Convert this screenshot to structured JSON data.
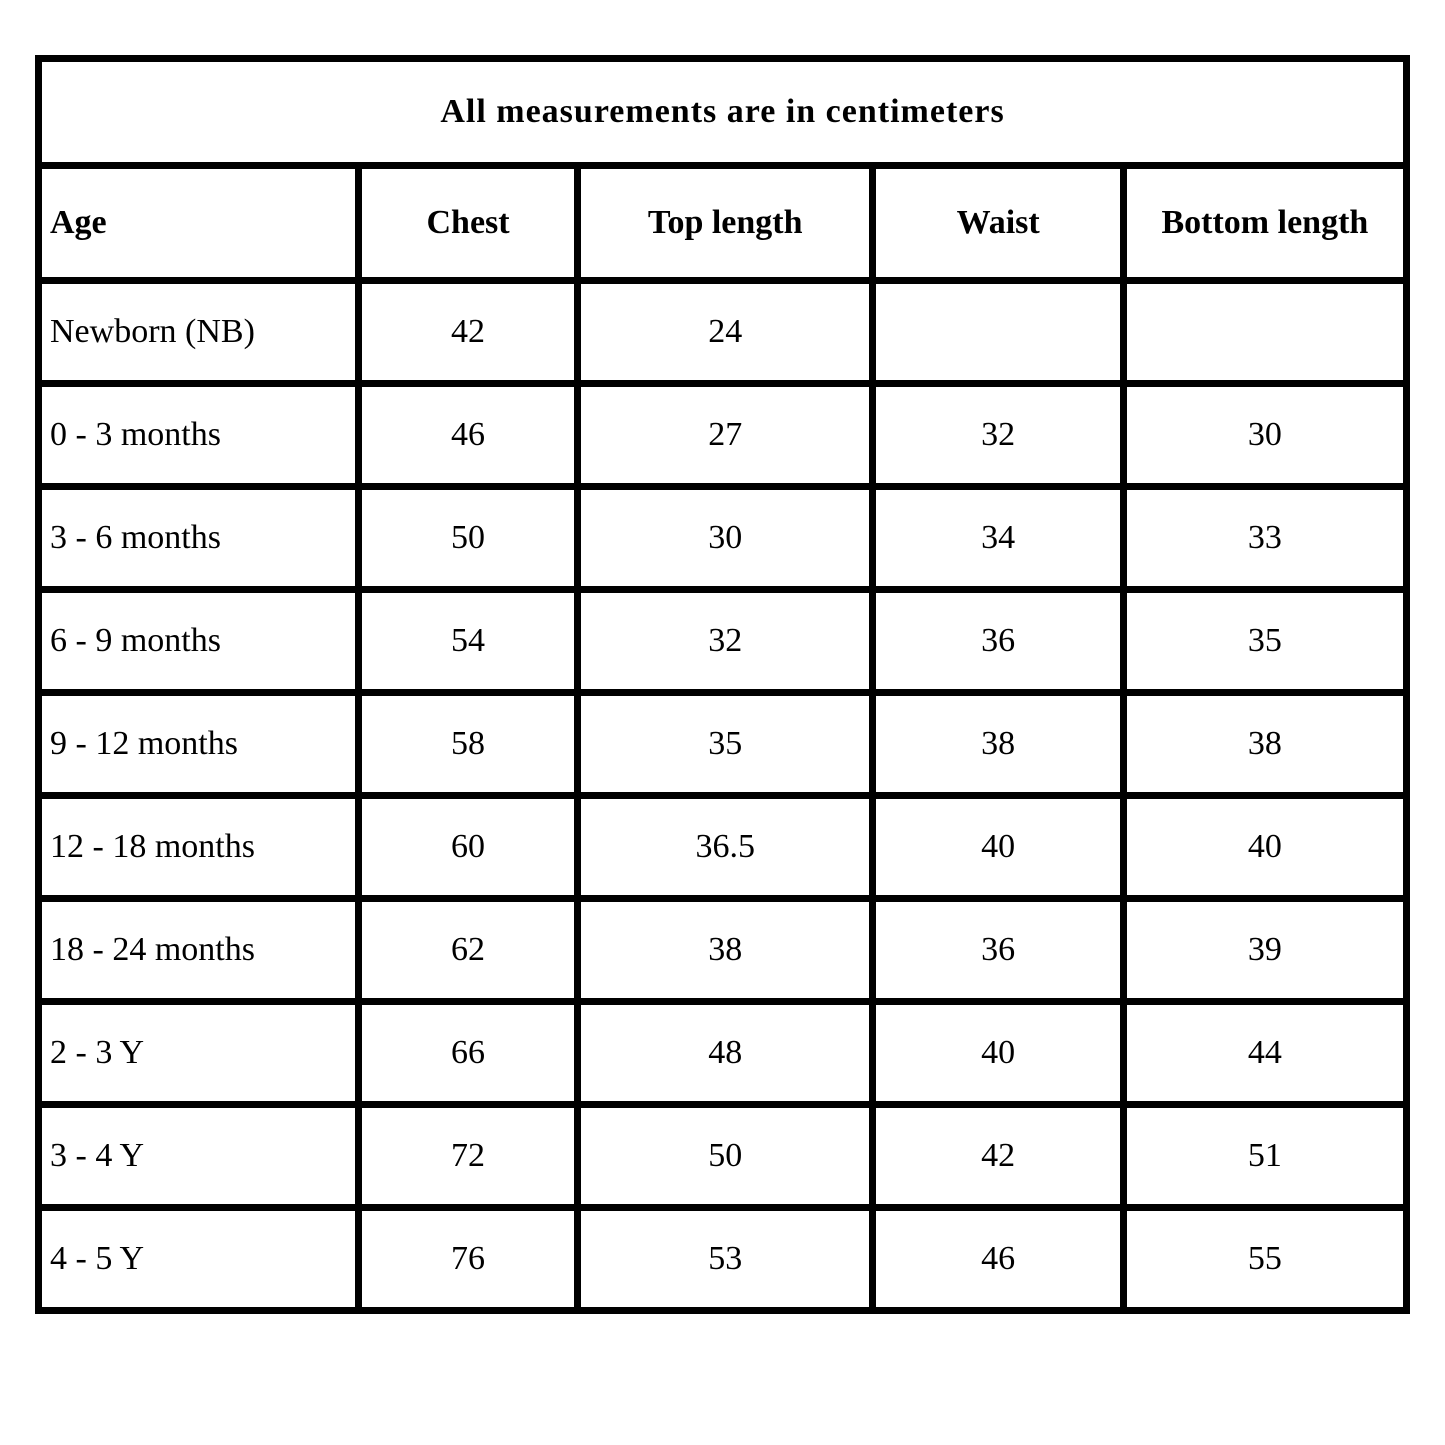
{
  "table": {
    "title": "All measurements are in centimeters",
    "columns": [
      {
        "key": "age",
        "label": "Age"
      },
      {
        "key": "chest",
        "label": "Chest"
      },
      {
        "key": "top_length",
        "label": "Top length"
      },
      {
        "key": "waist",
        "label": "Waist"
      },
      {
        "key": "bottom_length",
        "label": "Bottom length"
      }
    ],
    "rows": [
      [
        "Newborn (NB)",
        "42",
        "24",
        "",
        ""
      ],
      [
        "0 - 3 months",
        "46",
        "27",
        "32",
        "30"
      ],
      [
        "3 - 6 months",
        "50",
        "30",
        "34",
        "33"
      ],
      [
        "6 - 9 months",
        "54",
        "32",
        "36",
        "35"
      ],
      [
        "9 - 12 months",
        "58",
        "35",
        "38",
        "38"
      ],
      [
        "12 - 18 months",
        "60",
        "36.5",
        "40",
        "40"
      ],
      [
        "18 - 24 months",
        "62",
        "38",
        "36",
        "39"
      ],
      [
        "2 - 3 Y",
        "66",
        "48",
        "40",
        "44"
      ],
      [
        "3 - 4 Y",
        "72",
        "50",
        "42",
        "51"
      ],
      [
        "4 - 5 Y",
        "76",
        "53",
        "46",
        "55"
      ]
    ],
    "colors": {
      "border": "#000000",
      "background": "#ffffff",
      "text": "#000000"
    }
  }
}
